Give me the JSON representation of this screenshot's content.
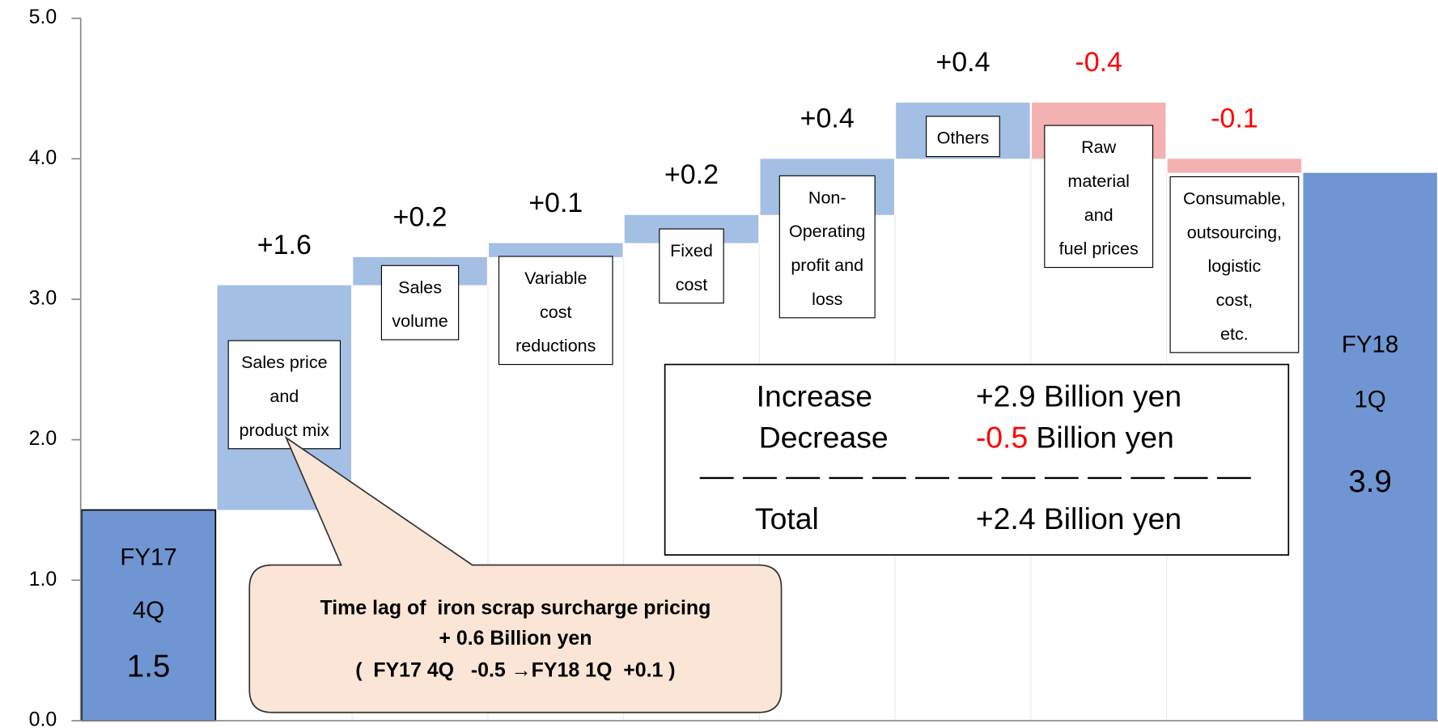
{
  "chart_data": {
    "type": "waterfall",
    "categories": [
      [
        "FY17",
        "4Q"
      ],
      [
        "Sales price",
        "and",
        "product mix"
      ],
      [
        "Sales",
        "volume"
      ],
      [
        "Variable",
        "cost",
        "reductions"
      ],
      [
        "Fixed",
        "cost"
      ],
      [
        "Non-",
        "Operating",
        "profit and",
        "loss"
      ],
      [
        "Others"
      ],
      [
        "Raw",
        "material",
        "and",
        "fuel prices"
      ],
      [
        "Consumable,",
        "outsourcing,",
        "logistic",
        "cost,",
        "etc."
      ],
      [
        "FY18",
        "1Q"
      ]
    ],
    "values": [
      1.5,
      1.6,
      0.2,
      0.1,
      0.2,
      0.4,
      0.4,
      -0.4,
      -0.1,
      3.9
    ],
    "value_labels": [
      "1.5",
      "+1.6",
      "+0.2",
      "+0.1",
      "+0.2",
      "+0.4",
      "+0.4",
      "-0.4",
      "-0.1",
      "3.9"
    ],
    "ylim": [
      0,
      5
    ],
    "yticks": [
      {
        "value": 0,
        "label": "0.0"
      },
      {
        "value": 1,
        "label": "1.0"
      },
      {
        "value": 2,
        "label": "2.0"
      },
      {
        "value": 3,
        "label": "3.0"
      },
      {
        "value": 4,
        "label": "4.0"
      },
      {
        "value": 5,
        "label": "5.0"
      }
    ],
    "total_color": "#6f96d2",
    "increase_color": "#a4bfe4",
    "decrease_color": "#f4b1b1",
    "negative_label_color": "#ff0000",
    "summary": [
      {
        "label": "Increase",
        "value": "+2.9",
        "unit": "Billion yen"
      },
      {
        "label": "Decrease",
        "value": "-0.5",
        "unit": "Billion yen"
      },
      {
        "label": "Total",
        "value": "+2.4",
        "unit": "Billion yen"
      }
    ],
    "callout": [
      "Time lag of  iron scrap surcharge pricing",
      "+ 0.6 Billion yen",
      "(  FY17 4Q   -0.5 →FY18 1Q  +0.1 )"
    ]
  }
}
